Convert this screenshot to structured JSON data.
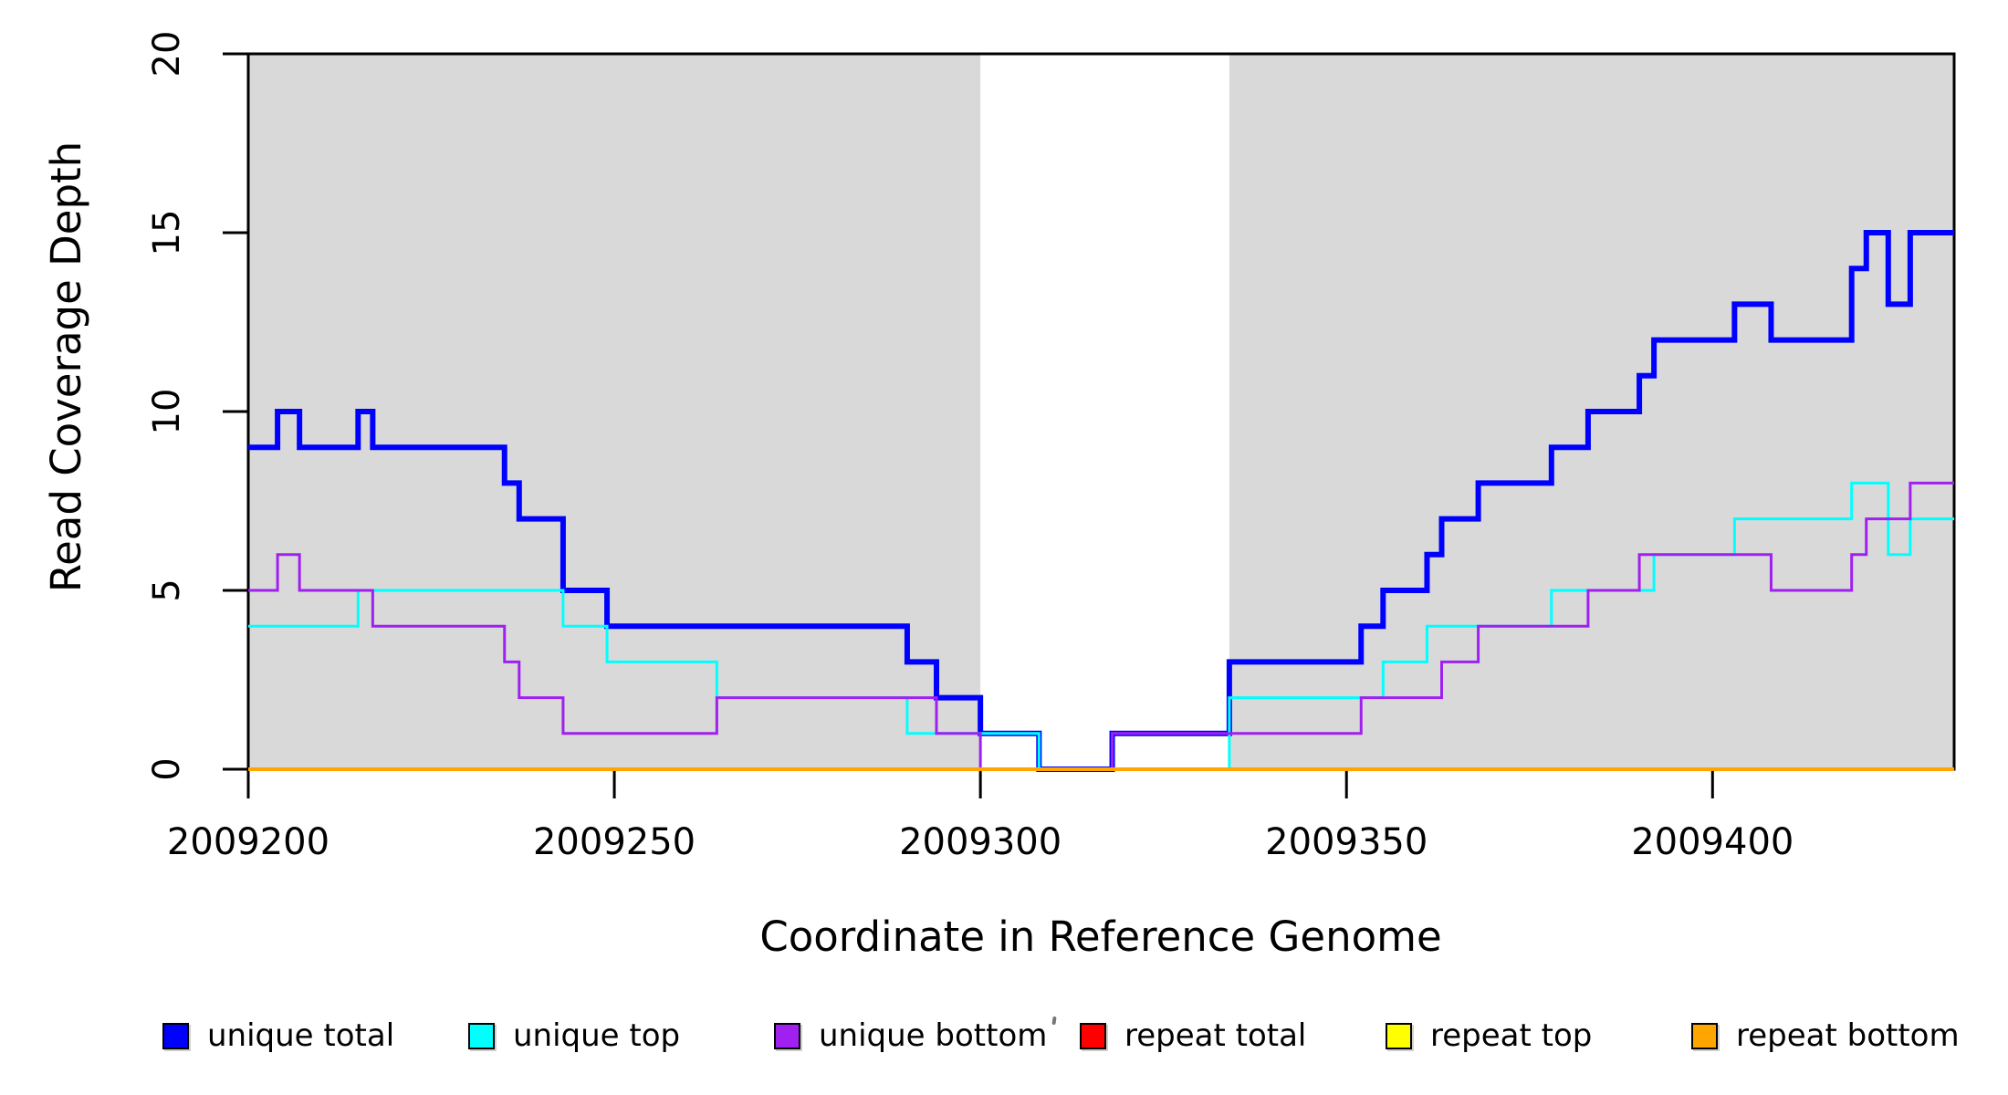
{
  "chart_data": {
    "type": "line",
    "subtype": "step-coverage-plot",
    "title": "",
    "xlabel": "Coordinate in Reference Genome",
    "ylabel": "Read Coverage Depth",
    "xlim": [
      2009200,
      2009433
    ],
    "ylim": [
      0,
      20
    ],
    "x_ticks": [
      2009200,
      2009250,
      2009300,
      2009350,
      2009400
    ],
    "x_tick_labels": [
      "2009200",
      "2009250",
      "2009300",
      "2009350",
      "2009400"
    ],
    "y_ticks": [
      0,
      5,
      10,
      15,
      20
    ],
    "y_tick_labels": [
      "0",
      "5",
      "10",
      "15",
      "20"
    ],
    "grid": false,
    "plot_background": "#ffffff",
    "highlight_color": "#D9D9D9",
    "highlight_regions": [
      {
        "x0": 2009200,
        "x1": 2009300
      },
      {
        "x0": 2009334,
        "x1": 2009433
      }
    ],
    "gap_region": {
      "x0": 2009300,
      "x1": 2009334,
      "color": "#ffffff"
    },
    "legend_position": "bottom",
    "series": [
      {
        "name": "unique total",
        "color": "#0000FF",
        "line_width": 6,
        "points": [
          [
            2009200,
            9
          ],
          [
            2009204,
            10
          ],
          [
            2009207,
            9
          ],
          [
            2009215,
            10
          ],
          [
            2009217,
            9
          ],
          [
            2009235,
            8
          ],
          [
            2009237,
            7
          ],
          [
            2009243,
            5
          ],
          [
            2009249,
            4
          ],
          [
            2009290,
            3
          ],
          [
            2009294,
            2
          ],
          [
            2009300,
            1
          ],
          [
            2009308,
            0
          ],
          [
            2009318,
            1
          ],
          [
            2009334,
            3
          ],
          [
            2009352,
            4
          ],
          [
            2009355,
            5
          ],
          [
            2009361,
            6
          ],
          [
            2009363,
            7
          ],
          [
            2009368,
            8
          ],
          [
            2009378,
            9
          ],
          [
            2009383,
            10
          ],
          [
            2009390,
            11
          ],
          [
            2009392,
            12
          ],
          [
            2009403,
            13
          ],
          [
            2009408,
            12
          ],
          [
            2009419,
            14
          ],
          [
            2009421,
            15
          ],
          [
            2009424,
            13
          ],
          [
            2009427,
            15
          ]
        ]
      },
      {
        "name": "unique top",
        "color": "#00FFFF",
        "line_width": 3,
        "points": [
          [
            2009200,
            4
          ],
          [
            2009215,
            5
          ],
          [
            2009243,
            4
          ],
          [
            2009249,
            3
          ],
          [
            2009264,
            2
          ],
          [
            2009290,
            1
          ],
          [
            2009308,
            0
          ],
          [
            2009334,
            2
          ],
          [
            2009355,
            3
          ],
          [
            2009361,
            4
          ],
          [
            2009378,
            5
          ],
          [
            2009392,
            6
          ],
          [
            2009403,
            7
          ],
          [
            2009419,
            8
          ],
          [
            2009424,
            6
          ],
          [
            2009427,
            7
          ]
        ]
      },
      {
        "name": "unique bottom",
        "color": "#A020F0",
        "line_width": 3,
        "points": [
          [
            2009200,
            5
          ],
          [
            2009204,
            6
          ],
          [
            2009207,
            5
          ],
          [
            2009217,
            4
          ],
          [
            2009235,
            3
          ],
          [
            2009237,
            2
          ],
          [
            2009243,
            1
          ],
          [
            2009264,
            2
          ],
          [
            2009294,
            1
          ],
          [
            2009300,
            0
          ],
          [
            2009318,
            1
          ],
          [
            2009352,
            2
          ],
          [
            2009363,
            3
          ],
          [
            2009368,
            4
          ],
          [
            2009383,
            5
          ],
          [
            2009390,
            6
          ],
          [
            2009408,
            5
          ],
          [
            2009419,
            6
          ],
          [
            2009421,
            7
          ],
          [
            2009427,
            8
          ]
        ]
      },
      {
        "name": "repeat total",
        "color": "#FF0000",
        "line_width": 3,
        "points": [
          [
            2009200,
            0
          ]
        ]
      },
      {
        "name": "repeat top",
        "color": "#FFFF00",
        "line_width": 3,
        "points": [
          [
            2009200,
            0
          ]
        ]
      },
      {
        "name": "repeat bottom",
        "color": "#FFA500",
        "line_width": 4,
        "points": [
          [
            2009200,
            0
          ]
        ]
      }
    ],
    "legend": [
      {
        "label": "unique total",
        "color": "#0000FF"
      },
      {
        "label": "unique top",
        "color": "#00FFFF"
      },
      {
        "label": "unique bottom",
        "color": "#A020F0"
      },
      {
        "label": "repeat total",
        "color": "#FF0000"
      },
      {
        "label": "repeat top",
        "color": "#FFFF00"
      },
      {
        "label": "repeat bottom",
        "color": "#FFA500"
      }
    ]
  }
}
